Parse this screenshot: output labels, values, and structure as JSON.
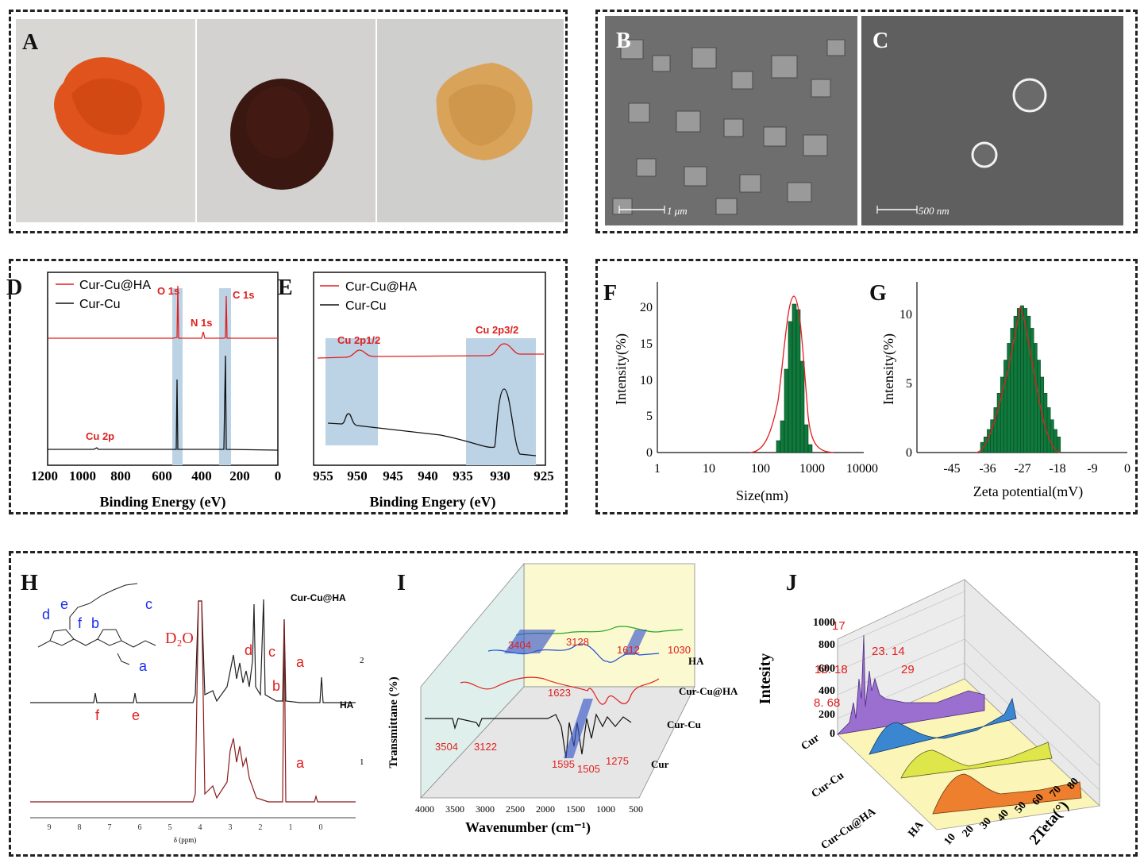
{
  "panels": {
    "A": {
      "letter": "A"
    },
    "B": {
      "letter": "B",
      "scale": "1 μm"
    },
    "C": {
      "letter": "C",
      "scale": "500 nm"
    },
    "D": {
      "letter": "D",
      "legend": [
        "Cur-Cu@HA",
        "Cur-Cu"
      ],
      "peaks": [
        "O 1s",
        "C 1s",
        "N 1s",
        "Cu 2p"
      ],
      "xlabel": "Binding Energy (eV)",
      "xticks": [
        "1200",
        "1000",
        "800",
        "600",
        "400",
        "200",
        "0"
      ]
    },
    "E": {
      "letter": "E",
      "legend": [
        "Cur-Cu@HA",
        "Cur-Cu"
      ],
      "peaks": [
        "Cu 2p1/2",
        "Cu 2p3/2"
      ],
      "xlabel": "Binding Engery (eV)",
      "xticks": [
        "955",
        "950",
        "945",
        "940",
        "935",
        "930",
        "925"
      ]
    },
    "F": {
      "letter": "F",
      "ylabel": "Intensity(%)",
      "xlabel": "Size(nm)",
      "xticks": [
        "1",
        "10",
        "100",
        "1000",
        "10000"
      ],
      "yticks": [
        "0",
        "5",
        "10",
        "15",
        "20"
      ]
    },
    "G": {
      "letter": "G",
      "ylabel": "Intensity(%)",
      "xlabel": "Zeta potential(mV)",
      "xticks": [
        "-45",
        "-36",
        "-27",
        "-18",
        "-9",
        "0"
      ],
      "yticks": [
        "0",
        "5",
        "10"
      ]
    },
    "H": {
      "letter": "H",
      "labels": {
        "top": "Cur-Cu@HA",
        "bottom": "HA",
        "solvent": "D₂O",
        "xlabel": "δ (ppm)",
        "n2": "2",
        "n1": "1"
      },
      "peaks": [
        "d",
        "c",
        "a",
        "b",
        "f",
        "e",
        "a"
      ],
      "struct_labels": [
        "d",
        "e",
        "f",
        "b",
        "c",
        "a"
      ],
      "xticks": [
        "9",
        "8",
        "7",
        "6",
        "5",
        "4",
        "3",
        "2",
        "1",
        "0"
      ]
    },
    "I": {
      "letter": "I",
      "ylabel": "Transmittane (%)",
      "xlabel": "Wavenumber (cm⁻¹)",
      "series": [
        "HA",
        "Cur-Cu@HA",
        "Cur-Cu",
        "Cur"
      ],
      "annotations": [
        "3404",
        "3128",
        "1612",
        "1030",
        "1623",
        "3504",
        "3122",
        "1595",
        "1505",
        "1275"
      ],
      "xticks": [
        "4000",
        "3500",
        "3000",
        "2500",
        "2000",
        "1500",
        "1000",
        "500"
      ]
    },
    "J": {
      "letter": "J",
      "ylabel": "Intesity",
      "xlabel": "2Teta(°)",
      "series": [
        "Cur",
        "Cur-Cu",
        "Cur-Cu@HA",
        "HA"
      ],
      "annotations": [
        "17",
        "23. 14",
        "12. 18",
        "29",
        "8. 68"
      ],
      "yticks": [
        "0",
        "200",
        "400",
        "600",
        "800",
        "1000"
      ],
      "xticks": [
        "10",
        "20",
        "30",
        "40",
        "50",
        "60",
        "70",
        "80"
      ]
    }
  },
  "colors": {
    "red": "#e0201e",
    "black": "#111111",
    "green": "#0f7a3c",
    "highlight": "#bcd3e6"
  }
}
